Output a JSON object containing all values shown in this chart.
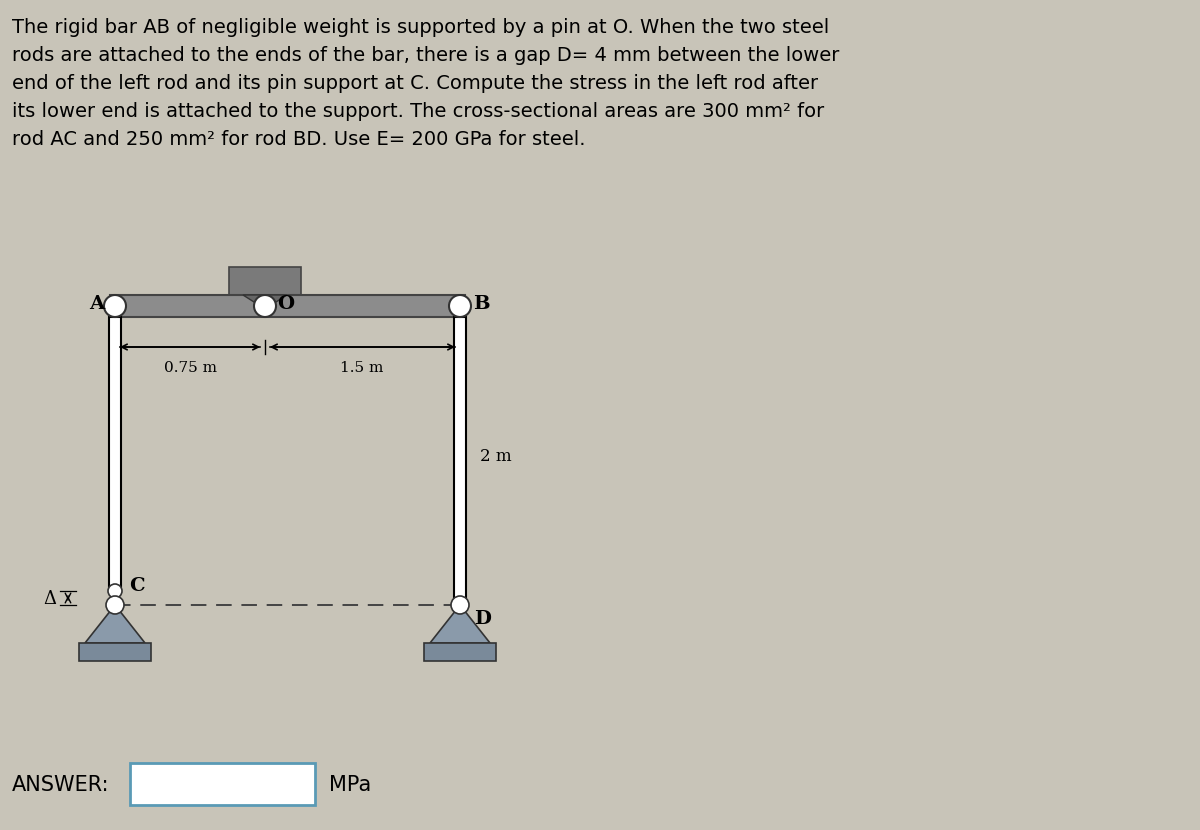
{
  "bg_color": "#c8c4b8",
  "text_color": "#000000",
  "problem_text_lines": [
    "The rigid bar AB of negligible weight is supported by a pin at O. When the two steel",
    "rods are attached to the ends of the bar, there is a gap D= 4 mm between the lower",
    "end of the left rod and its pin support at C. Compute the stress in the left rod after",
    "its lower end is attached to the support. The cross-sectional areas are 300 mm² for",
    "rod AC and 250 mm² for rod BD. Use E= 200 GPa for steel."
  ],
  "answer_label": "ANSWER:",
  "mpa_label": "MPa",
  "dim_075": "0.75 m",
  "dim_15": "1.5 m",
  "dim_2m": "2 m",
  "label_A": "A",
  "label_O": "O",
  "label_B": "B",
  "label_C": "C",
  "label_D": "D",
  "label_delta": "Δ",
  "bar_color": "#8c8c8c",
  "wall_mount_color": "#7a7a7a",
  "rod_fill": "#ffffff",
  "support_body_color": "#8a9aaa",
  "ground_color": "#7a8a9a",
  "dashed_color": "#444444",
  "answer_box_color": "#5a9ab5",
  "text_bg": "#ddd8cc"
}
